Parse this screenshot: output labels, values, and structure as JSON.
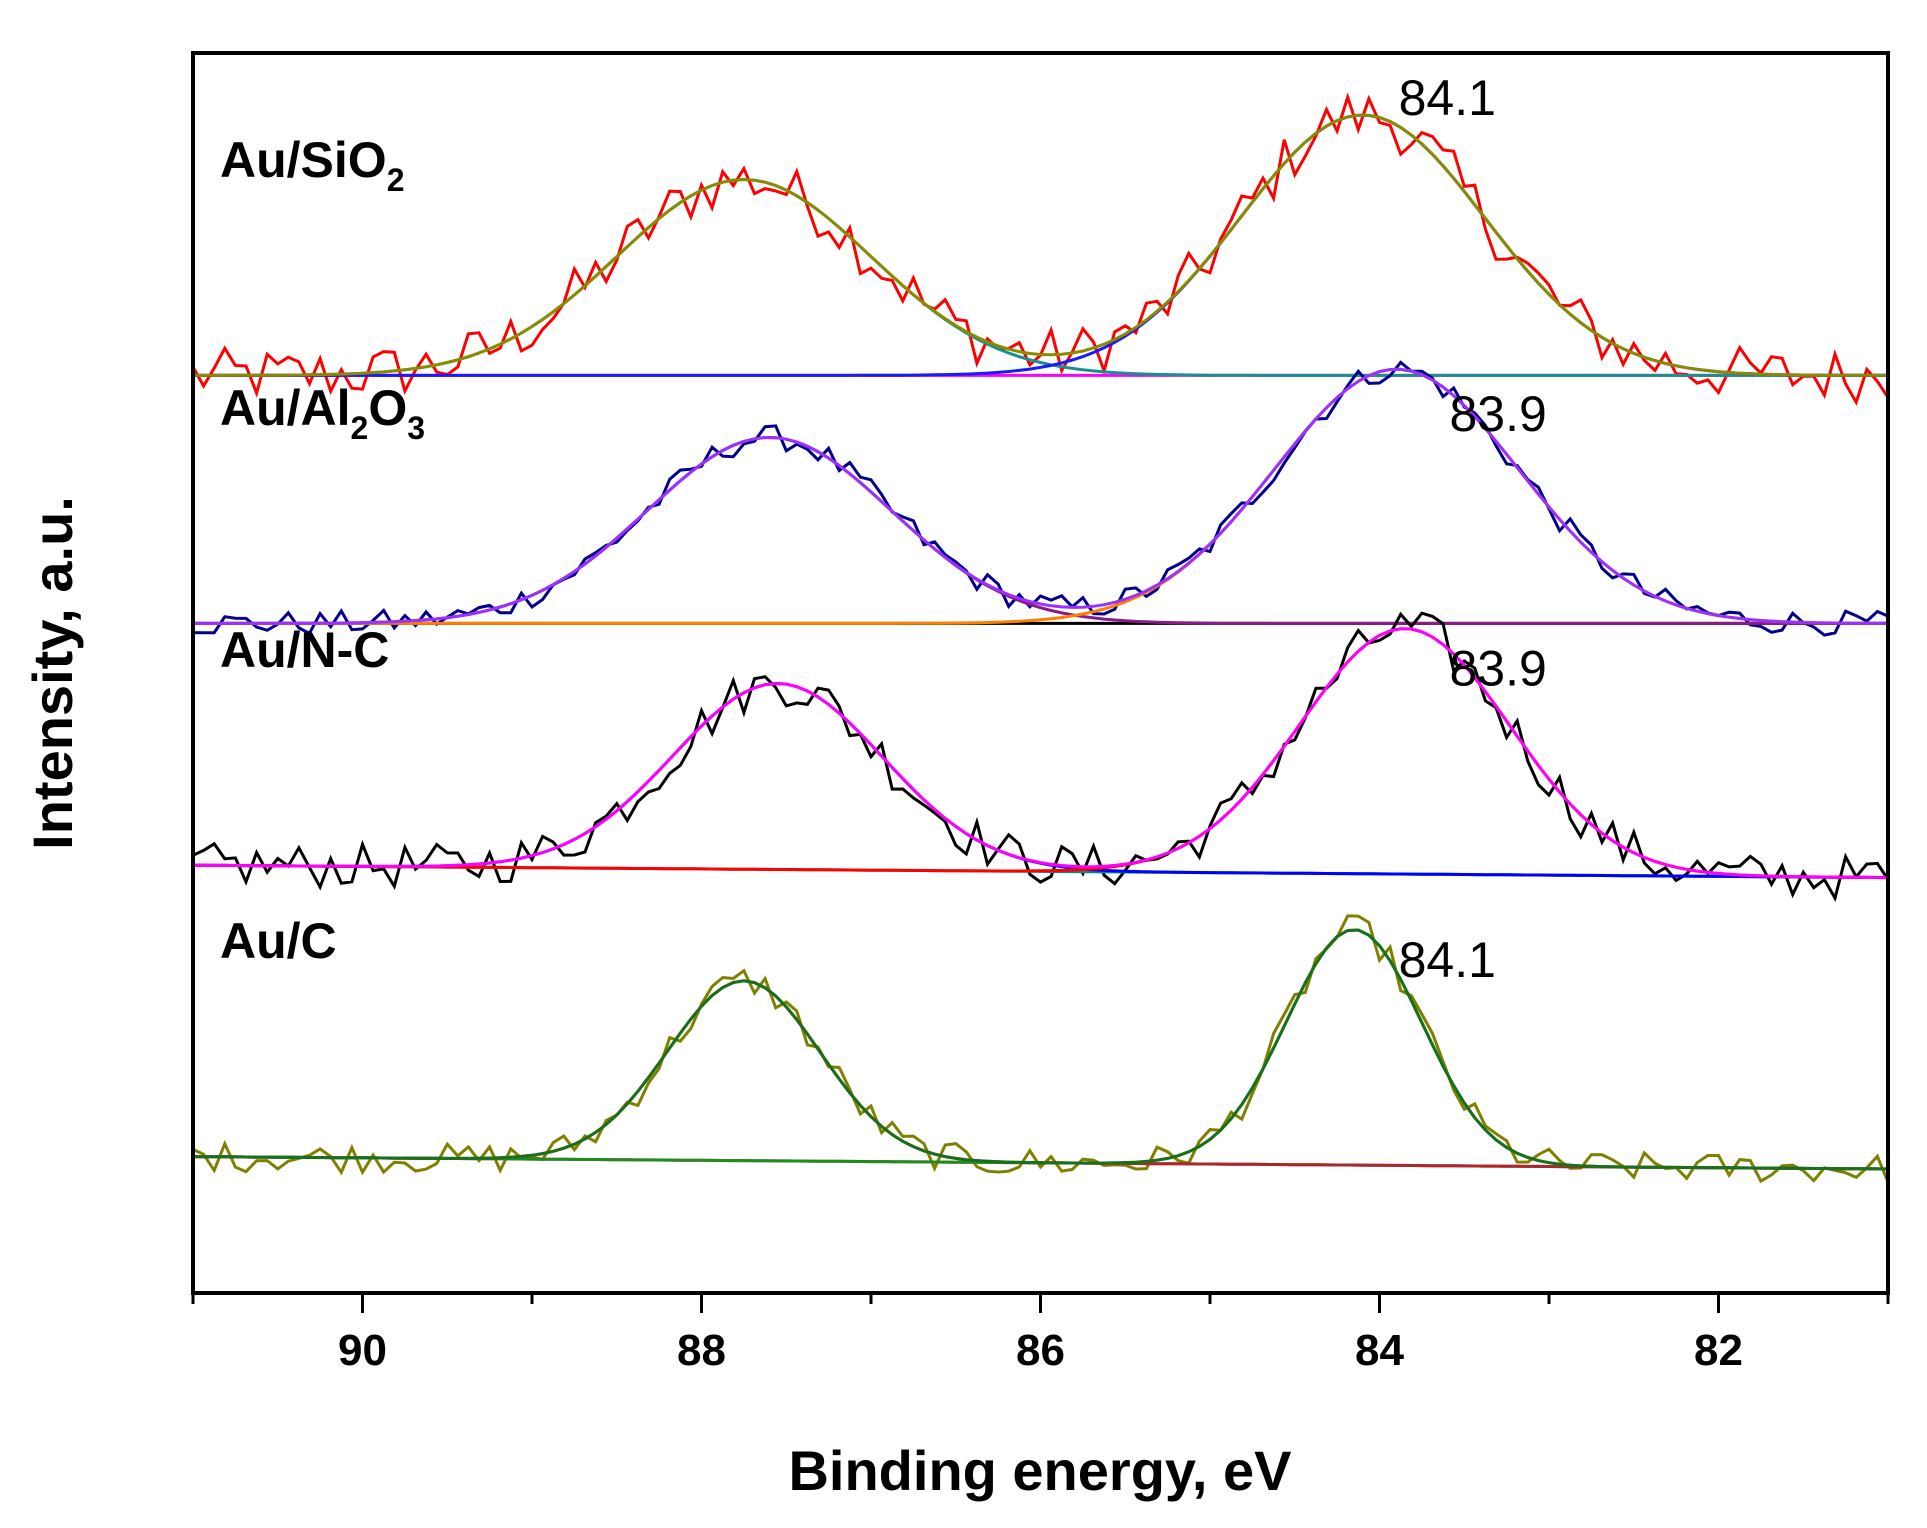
{
  "chart_data": {
    "type": "line",
    "title": "",
    "xlabel": "Binding energy, eV",
    "ylabel": "Intensity, a.u.",
    "xlim": [
      91,
      81
    ],
    "ylim": [
      0,
      1
    ],
    "x_reversed": true,
    "xticks": [
      90,
      88,
      86,
      84,
      82
    ],
    "xtick_labels": [
      "90",
      "88",
      "86",
      "84",
      "82"
    ],
    "grid": false,
    "legend": "none",
    "samples": [
      {
        "name": "Au/SiO2",
        "label_main": "Au/SiO",
        "label_sub": "2",
        "baseline": 0.74,
        "peaks": [
          {
            "center": 87.75,
            "height": 0.158,
            "sigma": 0.75,
            "color": "#1a8f8f"
          },
          {
            "center": 84.1,
            "height": 0.21,
            "sigma": 0.72,
            "color": "#1a1aff"
          }
        ],
        "envelope_color": "#8b8b00",
        "raw_color": "#ff0000",
        "baseline_color": "#ff00ff",
        "noise": 0.022,
        "peak_annotation": "84.1",
        "annotation_x": 83.6,
        "annotation_y": 0.95
      },
      {
        "name": "Au/Al2O3",
        "label_main": "Au/Al",
        "label_sub": "2",
        "label_main2": "O",
        "label_sub2": "3",
        "baseline": 0.54,
        "peaks": [
          {
            "center": 87.6,
            "height": 0.15,
            "sigma": 0.72,
            "color": "#8b1a8b"
          },
          {
            "center": 83.9,
            "height": 0.205,
            "sigma": 0.72,
            "color": "#ff8000"
          }
        ],
        "envelope_color": "#9b30ff",
        "raw_color": "#00008b",
        "baseline_color": "#000000",
        "noise": 0.01,
        "peak_annotation": "83.9",
        "annotation_x": 83.3,
        "annotation_y": 0.695
      },
      {
        "name": "Au/N-C",
        "label_main": "Au/N-C",
        "baseline": 0.345,
        "baseline_end": 0.335,
        "peaks": [
          {
            "center": 87.55,
            "height": 0.15,
            "sigma": 0.62,
            "color": "#0000ff"
          },
          {
            "center": 83.85,
            "height": 0.198,
            "sigma": 0.62,
            "color": "#ff0000"
          }
        ],
        "envelope_color": "#ff00ff",
        "raw_color": "#000000",
        "baseline_color": "#008b8b",
        "noise": 0.018,
        "peak_annotation": "83.9",
        "annotation_x": 83.3,
        "annotation_y": 0.49
      },
      {
        "name": "Au/C",
        "label_main": "Au/C",
        "baseline": 0.11,
        "baseline_end": 0.1,
        "peaks": [
          {
            "center": 87.75,
            "height": 0.145,
            "sigma": 0.45,
            "color": "#a52a2a"
          },
          {
            "center": 84.15,
            "height": 0.19,
            "sigma": 0.4,
            "color": "#1a8f1a"
          }
        ],
        "envelope_color": "#1a6f1a",
        "raw_color": "#808000",
        "baseline_color": "#ff1493",
        "noise": 0.012,
        "peak_annotation": "84.1",
        "annotation_x": 83.6,
        "annotation_y": 0.255
      }
    ]
  }
}
